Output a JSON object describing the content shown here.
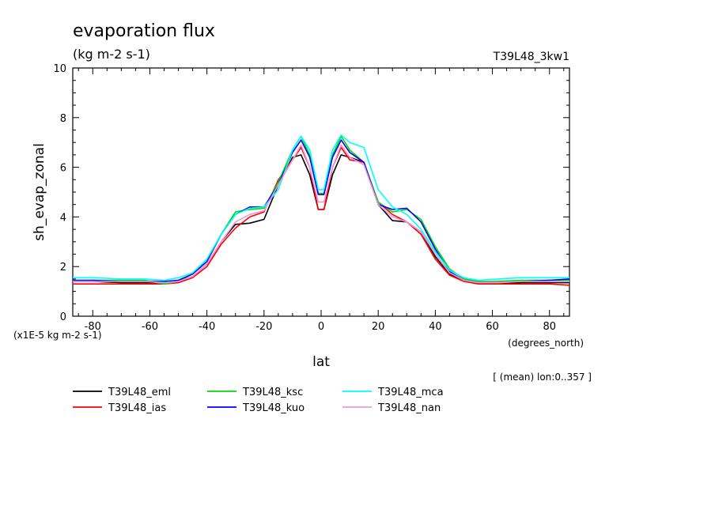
{
  "chart_data": {
    "type": "line",
    "title": "evaporation flux",
    "subtitle": "(kg m-2 s-1)",
    "run_label": "T39L48_3kw1",
    "xlabel": "lat",
    "ylabel": "sh_evap_zonal",
    "x_units": "(degrees_north)",
    "y_scale_note": "(x1E-5 kg m-2 s-1)",
    "footnote": "[ (mean) lon:0..357 ]",
    "xlim": [
      -87,
      87
    ],
    "ylim": [
      0,
      10
    ],
    "x_ticks": [
      -80,
      -60,
      -40,
      -20,
      0,
      20,
      40,
      60,
      80
    ],
    "x_tick_labels": [
      "-80",
      "-60",
      "-40",
      "-20",
      "0",
      "20",
      "40",
      "60",
      "80"
    ],
    "y_ticks": [
      0,
      2,
      4,
      6,
      8,
      10
    ],
    "y_tick_labels": [
      "0",
      "2",
      "4",
      "6",
      "8",
      "10"
    ],
    "grid": false,
    "legend_position": "bottom",
    "x": [
      -87,
      -80,
      -70,
      -62,
      -55,
      -50,
      -45,
      -40,
      -35,
      -30,
      -25,
      -20,
      -15,
      -10,
      -7,
      -4,
      -1,
      1,
      4,
      7,
      10,
      15,
      20,
      25,
      30,
      35,
      40,
      45,
      50,
      55,
      62,
      70,
      80,
      87
    ],
    "series": [
      {
        "name": "T39L48_eml",
        "color": "#000000",
        "values": [
          1.4,
          1.4,
          1.35,
          1.35,
          1.35,
          1.4,
          1.6,
          2.1,
          3.0,
          3.7,
          3.75,
          3.9,
          5.3,
          6.4,
          6.5,
          5.7,
          4.3,
          4.3,
          5.7,
          6.5,
          6.4,
          6.2,
          4.5,
          3.85,
          3.8,
          3.4,
          2.4,
          1.7,
          1.45,
          1.35,
          1.3,
          1.35,
          1.35,
          1.35
        ]
      },
      {
        "name": "T39L48_ias",
        "color": "#ff0000",
        "values": [
          1.3,
          1.3,
          1.3,
          1.3,
          1.3,
          1.35,
          1.55,
          2.0,
          2.9,
          3.55,
          4.0,
          4.2,
          5.5,
          6.3,
          6.8,
          6.0,
          4.3,
          4.3,
          6.0,
          6.8,
          6.3,
          6.2,
          4.6,
          4.1,
          3.8,
          3.3,
          2.3,
          1.65,
          1.4,
          1.3,
          1.3,
          1.3,
          1.3,
          1.25
        ]
      },
      {
        "name": "T39L48_ksc",
        "color": "#00dd00",
        "values": [
          1.4,
          1.45,
          1.45,
          1.45,
          1.3,
          1.4,
          1.7,
          2.3,
          3.3,
          4.2,
          4.3,
          4.35,
          5.4,
          6.7,
          7.25,
          6.5,
          4.95,
          4.95,
          6.5,
          7.25,
          6.7,
          6.2,
          4.6,
          4.2,
          4.3,
          3.9,
          2.8,
          1.9,
          1.5,
          1.4,
          1.4,
          1.45,
          1.45,
          1.45
        ]
      },
      {
        "name": "T39L48_kuo",
        "color": "#0000ff",
        "values": [
          1.45,
          1.45,
          1.4,
          1.4,
          1.4,
          1.45,
          1.7,
          2.2,
          3.3,
          4.1,
          4.4,
          4.4,
          5.3,
          6.6,
          7.1,
          6.4,
          4.9,
          4.9,
          6.4,
          7.1,
          6.6,
          6.2,
          4.5,
          4.3,
          4.35,
          3.8,
          2.7,
          1.8,
          1.45,
          1.35,
          1.35,
          1.4,
          1.45,
          1.5
        ]
      },
      {
        "name": "T39L48_mca",
        "color": "#00ffff",
        "values": [
          1.55,
          1.55,
          1.5,
          1.5,
          1.45,
          1.55,
          1.75,
          2.3,
          3.3,
          4.1,
          4.35,
          4.4,
          5.1,
          6.7,
          7.25,
          6.7,
          5.1,
          5.1,
          6.7,
          7.3,
          7.0,
          6.8,
          5.1,
          4.4,
          4.1,
          3.5,
          2.6,
          1.85,
          1.55,
          1.45,
          1.5,
          1.55,
          1.55,
          1.55
        ]
      },
      {
        "name": "T39L48_nan",
        "color": "#ee99dd",
        "values": [
          1.4,
          1.4,
          1.4,
          1.4,
          1.35,
          1.4,
          1.6,
          2.1,
          3.0,
          3.8,
          4.1,
          4.25,
          5.3,
          6.3,
          6.9,
          6.0,
          4.6,
          4.6,
          6.0,
          6.9,
          6.4,
          6.1,
          4.5,
          4.0,
          3.8,
          3.4,
          2.5,
          1.75,
          1.45,
          1.35,
          1.35,
          1.4,
          1.4,
          1.4
        ]
      }
    ]
  }
}
